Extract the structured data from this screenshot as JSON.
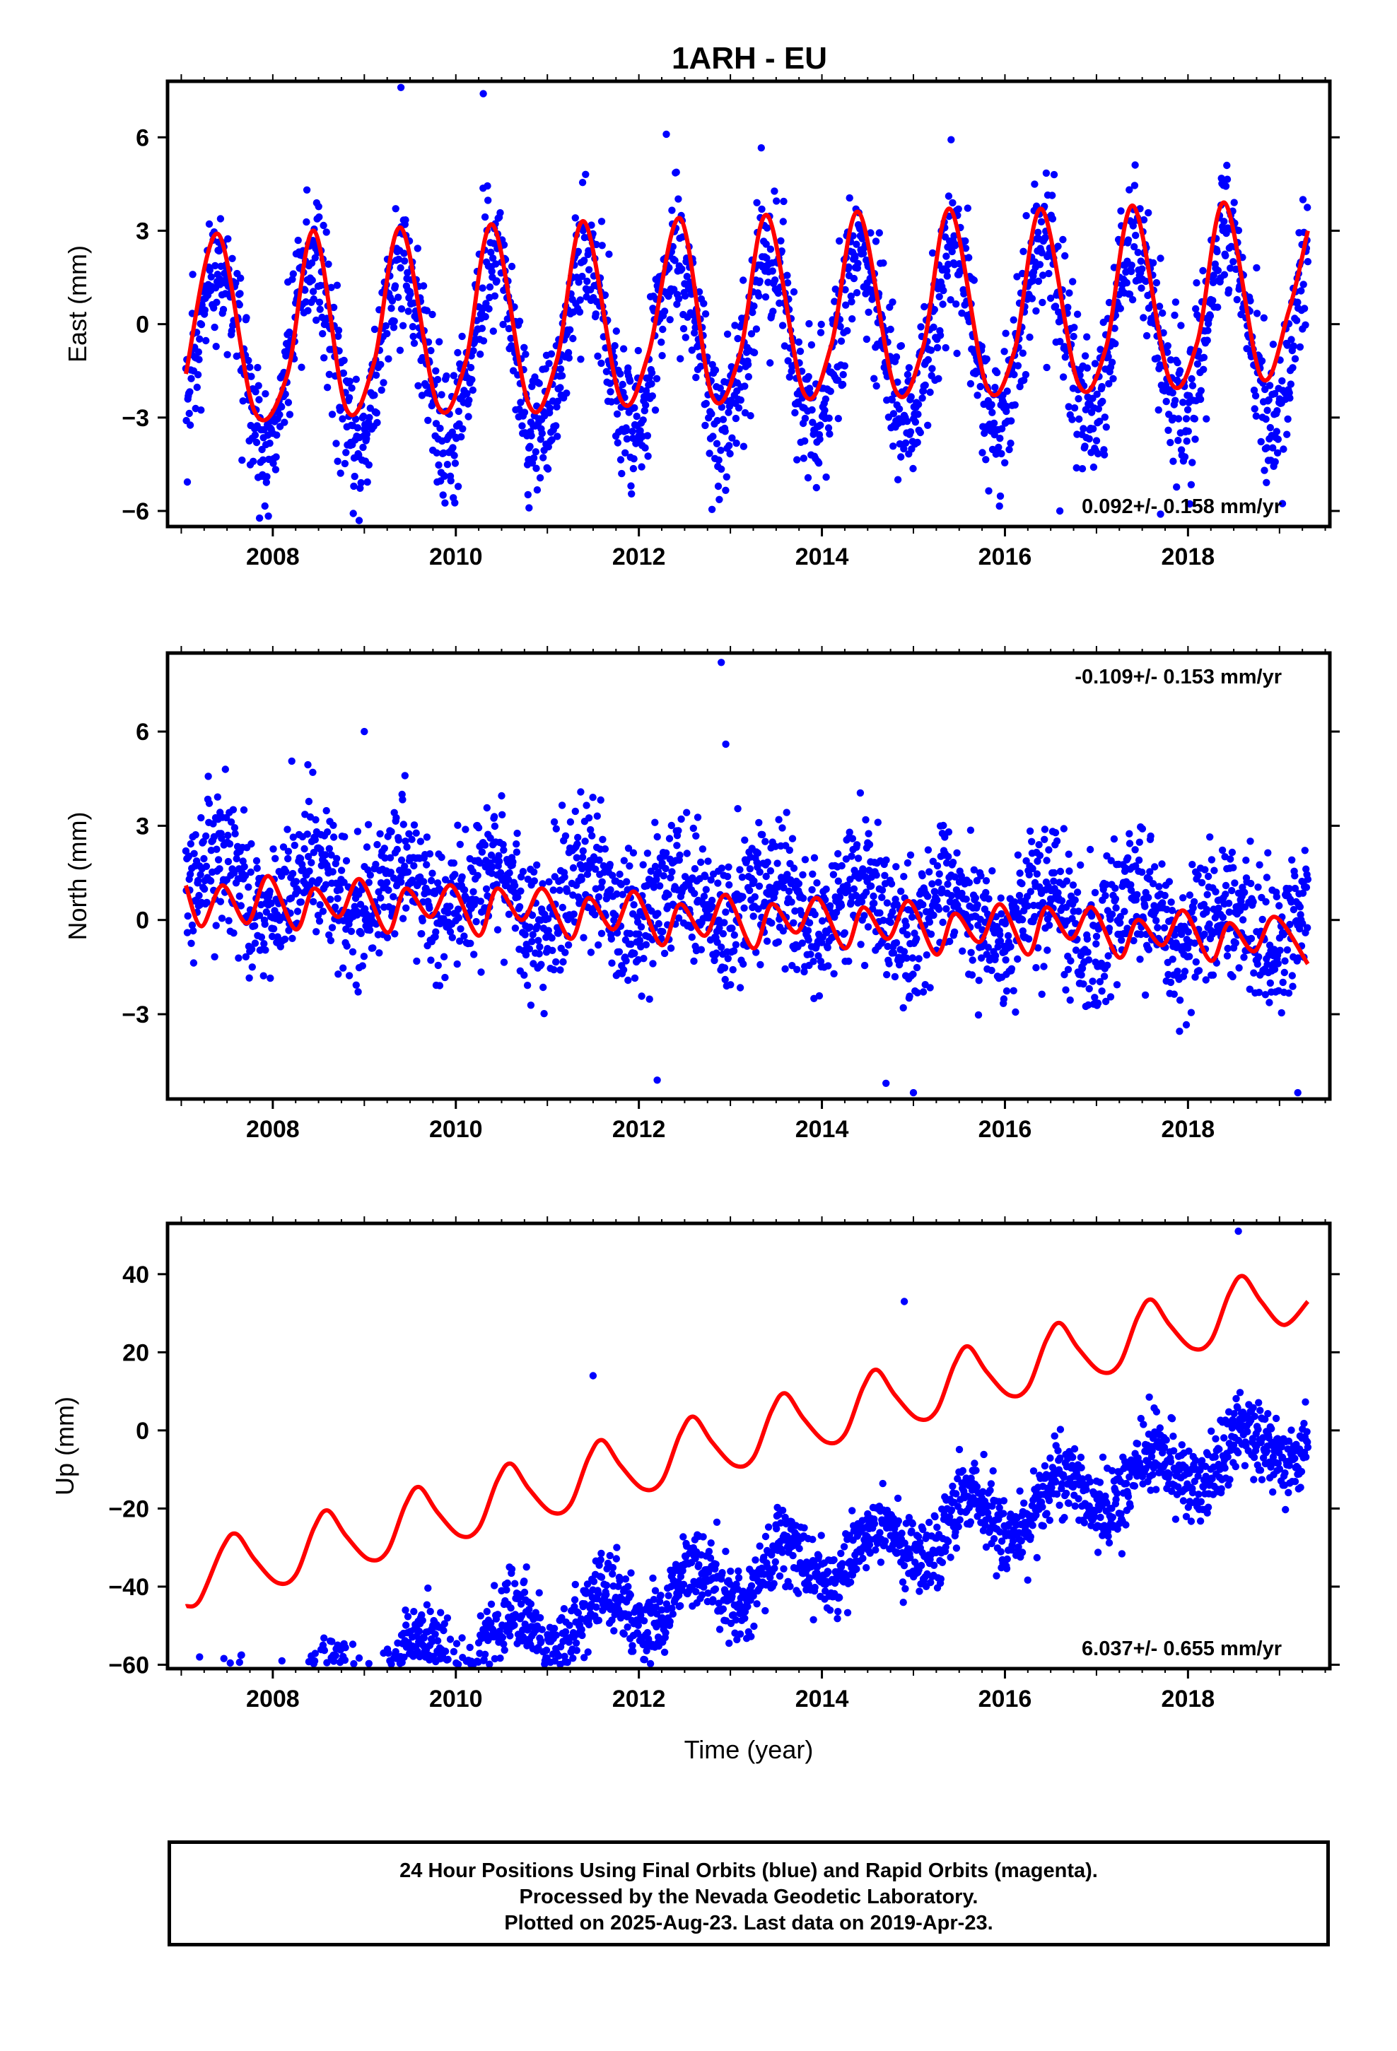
{
  "title": "1ARH - EU",
  "xlabel": "Time (year)",
  "caption": [
    "24 Hour Positions Using Final Orbits (blue) and Rapid Orbits (magenta).",
    "Processed by the Nevada Geodetic Laboratory.",
    "Plotted on 2025-Aug-23. Last data on 2019-Apr-23."
  ],
  "colors": {
    "points": "#0000ff",
    "model": "#ff0000"
  },
  "chart_data": [
    {
      "type": "scatter",
      "ylabel": "East (mm)",
      "rate": "0.092+/- 0.158 mm/yr",
      "rate_position": "bottom-right",
      "xlim": [
        2006.85,
        2019.55
      ],
      "ylim": [
        -6.5,
        7.8
      ],
      "xticks": [
        2008,
        2010,
        2012,
        2014,
        2016,
        2018
      ],
      "yticks": [
        6,
        3,
        0,
        -3,
        -6
      ],
      "ytick_labels": [
        "6",
        "3",
        "0",
        "−3",
        "−6"
      ],
      "time_range": [
        2007.05,
        2019.31
      ],
      "series": [
        {
          "type": "scatter",
          "trend": {
            "offset": -0.6,
            "slope": 0.092
          },
          "annual_amplitude": 2.8,
          "annual_peak": 0.42,
          "noise_sd": 1.15,
          "extremes": [
            [
              2009.4,
              7.6
            ],
            [
              2010.3,
              7.4
            ],
            [
              2012.3,
              6.1
            ],
            [
              2010.8,
              -5.9
            ],
            [
              2016.6,
              -6.0
            ],
            [
              2017.7,
              -6.1
            ]
          ]
        },
        {
          "type": "line",
          "knots": [
            [
              2007.05,
              -1.6
            ],
            [
              2007.4,
              2.9
            ],
            [
              2007.8,
              -2.8
            ],
            [
              2008.15,
              -1.7
            ],
            [
              2008.45,
              3.0
            ],
            [
              2008.8,
              -2.7
            ],
            [
              2009.1,
              -1.3
            ],
            [
              2009.4,
              3.1
            ],
            [
              2009.8,
              -2.6
            ],
            [
              2010.1,
              -1.3
            ],
            [
              2010.4,
              3.2
            ],
            [
              2010.8,
              -2.6
            ],
            [
              2011.1,
              -1.2
            ],
            [
              2011.4,
              3.3
            ],
            [
              2011.8,
              -2.4
            ],
            [
              2012.1,
              -1.0
            ],
            [
              2012.45,
              3.4
            ],
            [
              2012.8,
              -2.3
            ],
            [
              2013.1,
              -1.0
            ],
            [
              2013.4,
              3.5
            ],
            [
              2013.8,
              -2.2
            ],
            [
              2014.1,
              -0.7
            ],
            [
              2014.4,
              3.6
            ],
            [
              2014.8,
              -2.1
            ],
            [
              2015.1,
              -0.8
            ],
            [
              2015.4,
              3.7
            ],
            [
              2015.8,
              -2.0
            ],
            [
              2016.1,
              -0.9
            ],
            [
              2016.4,
              3.7
            ],
            [
              2016.8,
              -1.9
            ],
            [
              2017.1,
              -0.8
            ],
            [
              2017.4,
              3.8
            ],
            [
              2017.8,
              -1.8
            ],
            [
              2018.1,
              -0.6
            ],
            [
              2018.4,
              3.9
            ],
            [
              2018.8,
              -1.7
            ],
            [
              2019.1,
              0.4
            ],
            [
              2019.31,
              3.0
            ]
          ]
        }
      ]
    },
    {
      "type": "scatter",
      "ylabel": "North (mm)",
      "rate": "-0.109+/- 0.153 mm/yr",
      "rate_position": "top-right",
      "xlim": [
        2006.85,
        2019.55
      ],
      "ylim": [
        -5.7,
        8.5
      ],
      "xticks": [
        2008,
        2010,
        2012,
        2014,
        2016,
        2018
      ],
      "yticks": [
        6,
        3,
        0,
        -3
      ],
      "ytick_labels": [
        "6",
        "3",
        "0",
        "−3"
      ],
      "time_range": [
        2007.05,
        2019.31
      ],
      "series": [
        {
          "type": "scatter",
          "trend": {
            "offset": 0.5,
            "slope": -0.109
          },
          "annual_amplitude": 0.8,
          "annual_peak": 0.42,
          "noise_sd": 1.1,
          "extremes": [
            [
              2012.9,
              8.2
            ],
            [
              2009.0,
              6.0
            ],
            [
              2012.95,
              5.6
            ],
            [
              2012.2,
              -5.1
            ],
            [
              2014.7,
              -5.2
            ],
            [
              2015.0,
              -5.5
            ],
            [
              2019.2,
              -5.5
            ]
          ]
        },
        {
          "type": "line",
          "knots": [
            [
              2007.05,
              1.1
            ],
            [
              2007.22,
              -0.2
            ],
            [
              2007.45,
              1.1
            ],
            [
              2007.72,
              -0.1
            ],
            [
              2007.95,
              1.4
            ],
            [
              2008.25,
              -0.3
            ],
            [
              2008.45,
              1.0
            ],
            [
              2008.72,
              0.1
            ],
            [
              2008.95,
              1.3
            ],
            [
              2009.25,
              -0.4
            ],
            [
              2009.45,
              1.0
            ],
            [
              2009.72,
              0.1
            ],
            [
              2009.95,
              1.1
            ],
            [
              2010.25,
              -0.5
            ],
            [
              2010.45,
              1.0
            ],
            [
              2010.72,
              0.0
            ],
            [
              2010.95,
              1.0
            ],
            [
              2011.25,
              -0.6
            ],
            [
              2011.45,
              0.7
            ],
            [
              2011.72,
              -0.3
            ],
            [
              2011.95,
              0.9
            ],
            [
              2012.25,
              -0.8
            ],
            [
              2012.45,
              0.5
            ],
            [
              2012.72,
              -0.5
            ],
            [
              2012.95,
              0.8
            ],
            [
              2013.25,
              -0.9
            ],
            [
              2013.45,
              0.5
            ],
            [
              2013.72,
              -0.4
            ],
            [
              2013.95,
              0.7
            ],
            [
              2014.25,
              -0.9
            ],
            [
              2014.45,
              0.4
            ],
            [
              2014.72,
              -0.6
            ],
            [
              2014.95,
              0.6
            ],
            [
              2015.25,
              -1.1
            ],
            [
              2015.45,
              0.2
            ],
            [
              2015.72,
              -0.7
            ],
            [
              2015.95,
              0.5
            ],
            [
              2016.25,
              -1.1
            ],
            [
              2016.45,
              0.4
            ],
            [
              2016.72,
              -0.6
            ],
            [
              2016.95,
              0.4
            ],
            [
              2017.25,
              -1.2
            ],
            [
              2017.45,
              0.0
            ],
            [
              2017.72,
              -0.8
            ],
            [
              2017.95,
              0.3
            ],
            [
              2018.25,
              -1.3
            ],
            [
              2018.45,
              -0.1
            ],
            [
              2018.72,
              -1.0
            ],
            [
              2018.95,
              0.1
            ],
            [
              2019.31,
              -1.4
            ]
          ]
        }
      ]
    },
    {
      "type": "scatter",
      "ylabel": "Up (mm)",
      "rate": "6.037+/- 0.655 mm/yr",
      "rate_position": "bottom-right",
      "xlim": [
        2006.85,
        2019.55
      ],
      "ylim": [
        -61,
        53
      ],
      "xticks": [
        2008,
        2010,
        2012,
        2014,
        2016,
        2018
      ],
      "yticks": [
        40,
        20,
        0,
        -20,
        -40,
        -60
      ],
      "ytick_labels": [
        "40",
        "20",
        "0",
        "−20",
        "−40",
        "−60"
      ],
      "time_range": [
        2007.05,
        2019.31
      ],
      "series": [
        {
          "type": "scatter",
          "trend": {
            "offset": -39.0,
            "slope": 6.037
          },
          "annual_amplitude": 6.5,
          "annual_peak": 0.6,
          "noise_sd": 4.8,
          "extremes": [
            [
              2018.55,
              51.0
            ],
            [
              2011.5,
              14.0
            ],
            [
              2007.2,
              -58.0
            ],
            [
              2008.1,
              -59.0
            ],
            [
              2014.9,
              33.0
            ]
          ]
        },
        {
          "type": "line",
          "knots": [
            [
              2007.05,
              -45.0
            ],
            [
              2007.2,
              -43.5
            ],
            [
              2007.45,
              -30.0
            ],
            [
              2007.6,
              -26.5
            ],
            [
              2007.8,
              -33.0
            ],
            [
              2008.05,
              -39.0
            ],
            [
              2008.25,
              -37.0
            ],
            [
              2008.45,
              -25.0
            ],
            [
              2008.6,
              -20.5
            ],
            [
              2008.8,
              -27.0
            ],
            [
              2009.05,
              -33.0
            ],
            [
              2009.25,
              -31.0
            ],
            [
              2009.45,
              -19.0
            ],
            [
              2009.6,
              -14.5
            ],
            [
              2009.8,
              -21.0
            ],
            [
              2010.05,
              -27.0
            ],
            [
              2010.25,
              -25.0
            ],
            [
              2010.45,
              -13.0
            ],
            [
              2010.6,
              -8.5
            ],
            [
              2010.8,
              -15.0
            ],
            [
              2011.05,
              -21.0
            ],
            [
              2011.25,
              -19.0
            ],
            [
              2011.45,
              -7.0
            ],
            [
              2011.6,
              -2.5
            ],
            [
              2011.8,
              -9.0
            ],
            [
              2012.05,
              -15.0
            ],
            [
              2012.25,
              -13.0
            ],
            [
              2012.45,
              -1.0
            ],
            [
              2012.6,
              3.5
            ],
            [
              2012.8,
              -3.0
            ],
            [
              2013.05,
              -9.0
            ],
            [
              2013.25,
              -7.0
            ],
            [
              2013.45,
              5.0
            ],
            [
              2013.6,
              9.5
            ],
            [
              2013.8,
              3.0
            ],
            [
              2014.05,
              -3.0
            ],
            [
              2014.25,
              -1.0
            ],
            [
              2014.45,
              11.0
            ],
            [
              2014.6,
              15.5
            ],
            [
              2014.8,
              9.0
            ],
            [
              2015.05,
              3.0
            ],
            [
              2015.25,
              5.0
            ],
            [
              2015.45,
              17.0
            ],
            [
              2015.6,
              21.5
            ],
            [
              2015.8,
              15.0
            ],
            [
              2016.05,
              9.0
            ],
            [
              2016.25,
              11.0
            ],
            [
              2016.45,
              23.0
            ],
            [
              2016.6,
              27.5
            ],
            [
              2016.8,
              21.0
            ],
            [
              2017.05,
              15.0
            ],
            [
              2017.25,
              17.0
            ],
            [
              2017.45,
              29.0
            ],
            [
              2017.6,
              33.5
            ],
            [
              2017.8,
              27.0
            ],
            [
              2018.05,
              21.0
            ],
            [
              2018.25,
              23.0
            ],
            [
              2018.45,
              35.0
            ],
            [
              2018.6,
              39.5
            ],
            [
              2018.8,
              33.0
            ],
            [
              2019.05,
              27.0
            ],
            [
              2019.31,
              33.0
            ]
          ]
        }
      ]
    }
  ]
}
